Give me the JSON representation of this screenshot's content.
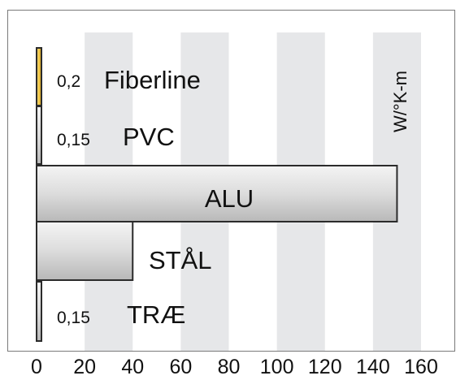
{
  "chart_data": {
    "type": "bar",
    "orientation": "horizontal",
    "categories": [
      "Fiberline",
      "PVC",
      "ALU",
      "STÅL",
      "TRÆ"
    ],
    "values": [
      0.2,
      0.15,
      150,
      40,
      0.15
    ],
    "value_labels": [
      "0,2",
      "0,15",
      "",
      "",
      "0,15"
    ],
    "bar_colors": [
      "#f2c23a",
      "#d6d6d6",
      "#d6d6d6",
      "#d6d6d6",
      "#d6d6d6"
    ],
    "unit": "W/°K-m",
    "x_ticks": [
      "0",
      "20",
      "40",
      "60",
      "80",
      "100",
      "120",
      "140",
      "160"
    ],
    "xlim": [
      0,
      160
    ],
    "grid": "alternating vertical bands",
    "legend": "none"
  }
}
